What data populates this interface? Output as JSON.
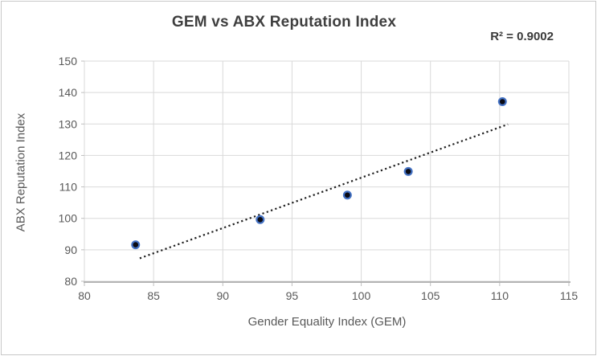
{
  "chart_data": {
    "type": "scatter",
    "title": "GEM vs ABX Reputation Index",
    "annotation": "R² = 0.9002",
    "xlabel": "Gender Equality Index (GEM)",
    "ylabel": "ABX Reputation Index",
    "xlim": [
      80,
      115
    ],
    "ylim": [
      80,
      150
    ],
    "x_ticks": [
      80,
      85,
      90,
      95,
      100,
      105,
      110,
      115
    ],
    "y_ticks": [
      80,
      90,
      100,
      110,
      120,
      130,
      140,
      150
    ],
    "grid": true,
    "legend": "none",
    "points": [
      {
        "x": 83.7,
        "y": 91.6
      },
      {
        "x": 92.7,
        "y": 99.6
      },
      {
        "x": 99.0,
        "y": 107.4
      },
      {
        "x": 103.4,
        "y": 114.9
      },
      {
        "x": 110.2,
        "y": 137.1
      }
    ],
    "trendline": {
      "style": "dotted",
      "x1": 84.0,
      "y1": 87.3,
      "x2": 110.6,
      "y2": 129.9
    },
    "colors": {
      "marker_fill": "#0b0b14",
      "marker_ring": "#4472c4",
      "trendline": "#1f1f1f",
      "gridline": "#d9d9d9",
      "axis_line": "#b3b3b3",
      "tick_mark": "#bfbfbf",
      "tick_label": "#595959",
      "axis_title": "#595959",
      "title": "#3f3f3f",
      "card_border": "#c8c8c8",
      "background": "#ffffff"
    }
  }
}
